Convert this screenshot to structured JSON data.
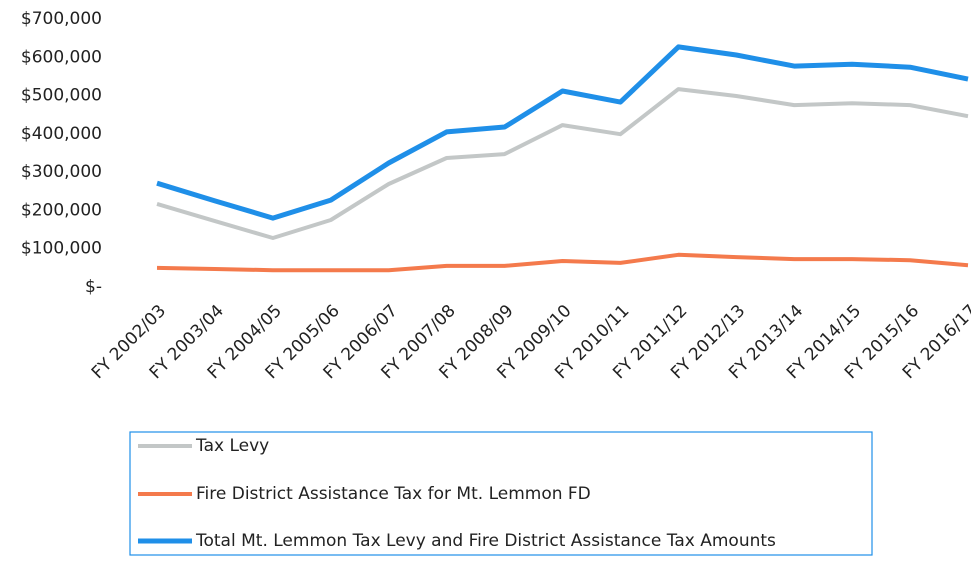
{
  "chart_data": {
    "type": "line",
    "categories": [
      "FY 2002/03",
      "FY 2003/04",
      "FY 2004/05",
      "FY 2005/06",
      "FY 2006/07",
      "FY 2007/08",
      "FY 2008/09",
      "FY 2009/10",
      "FY 2010/11",
      "FY 2011/12",
      "FY 2012/13",
      "FY 2013/14",
      "FY 2014/15",
      "FY 2015/16",
      "FY 2016/17"
    ],
    "series": [
      {
        "name": "Tax Levy",
        "color": "#c3c7c7",
        "values": [
          217000,
          172000,
          128000,
          175000,
          269000,
          337000,
          347000,
          423000,
          399000,
          517000,
          499000,
          475000,
          480000,
          475000,
          446000
        ]
      },
      {
        "name": "Fire District  Assistance Tax for Mt. Lemmon FD",
        "color": "#f47a4c",
        "values": [
          50000,
          47000,
          44000,
          44000,
          44000,
          55000,
          55000,
          68000,
          63000,
          84000,
          78000,
          73000,
          73000,
          70000,
          57000
        ]
      },
      {
        "name": "Total Mt. Lemmon  Tax Levy and Fire District Assistance Tax Amounts",
        "color": "#1f8fe8",
        "values": [
          271000,
          225000,
          180000,
          227000,
          324000,
          405000,
          418000,
          512000,
          483000,
          627000,
          606000,
          577000,
          582000,
          574000,
          543000
        ]
      }
    ],
    "ylim": [
      0,
      700000
    ],
    "yticks": [
      {
        "value": 0,
        "label": "$-"
      },
      {
        "value": 100000,
        "label": "$100,000"
      },
      {
        "value": 200000,
        "label": "$200,000"
      },
      {
        "value": 300000,
        "label": "$300,000"
      },
      {
        "value": 400000,
        "label": "$400,000"
      },
      {
        "value": 500000,
        "label": "$500,000"
      },
      {
        "value": 600000,
        "label": "$600,000"
      },
      {
        "value": 700000,
        "label": "$700,000"
      }
    ],
    "grid": false,
    "legend": "bottom"
  }
}
